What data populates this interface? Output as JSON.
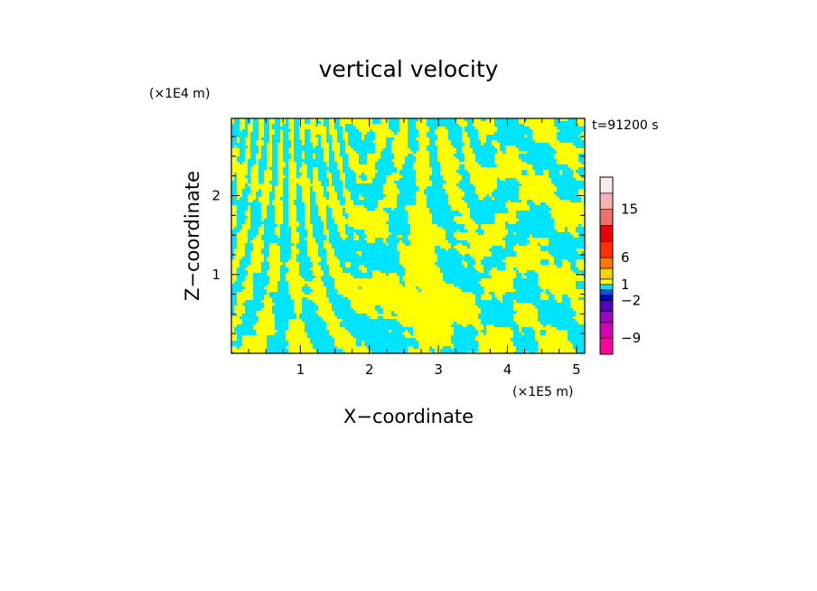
{
  "chart_data": {
    "type": "heatmap",
    "title": "vertical velocity",
    "xlabel": "X−coordinate",
    "ylabel": "Z−coordinate",
    "x_unit": "(×1E5 m)",
    "y_unit": "(×1E4 m)",
    "time_label": "t=91200 s",
    "xlim": [
      0,
      5.12
    ],
    "ylim": [
      0,
      2.98
    ],
    "x_ticks": [
      "1",
      "2",
      "3",
      "4",
      "5"
    ],
    "x_tick_values": [
      1,
      2,
      3,
      4,
      5
    ],
    "y_ticks": [
      "1",
      "2"
    ],
    "y_tick_values": [
      1,
      2
    ],
    "field_colors": {
      "positive": "#ffff00",
      "negative": "#00e5ff"
    },
    "colorbar": {
      "levels": [
        -12,
        -9,
        -6,
        -4,
        -2,
        -1,
        0,
        1,
        2,
        4,
        6,
        9,
        12,
        15,
        18,
        21
      ],
      "colors": [
        "#ff00a0",
        "#d400b4",
        "#a000c8",
        "#5000c0",
        "#0000c8",
        "#0050ff",
        "#00e5ff",
        "#ffff00",
        "#ffd200",
        "#ff7800",
        "#ff3000",
        "#e80000",
        "#f07070",
        "#f8b0b0",
        "#ffe8e8"
      ],
      "tick_labels": [
        "15",
        "6",
        "1",
        "−2",
        "−9"
      ],
      "tick_values": [
        15,
        6,
        1,
        -2,
        -9
      ]
    }
  }
}
